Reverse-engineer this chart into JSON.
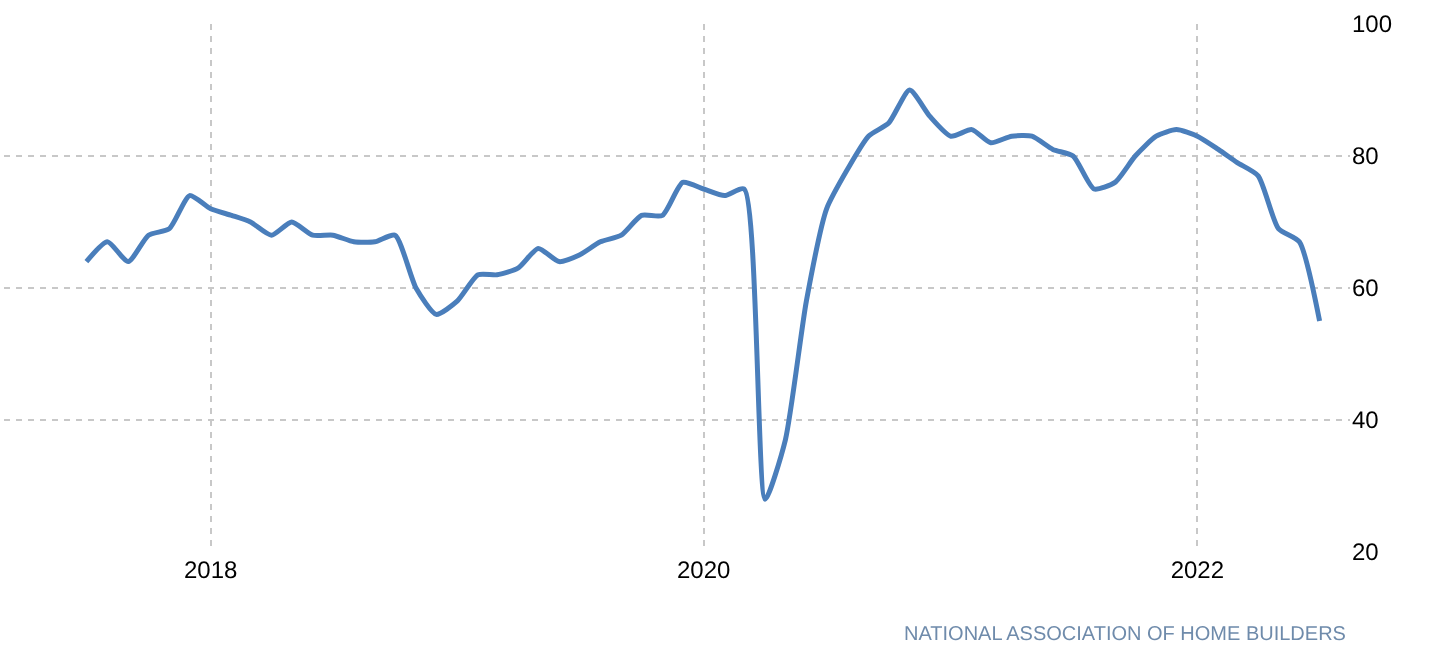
{
  "chart_data": {
    "type": "line",
    "x": [
      "2017-07",
      "2017-08",
      "2017-09",
      "2017-10",
      "2017-11",
      "2017-12",
      "2018-01",
      "2018-02",
      "2018-03",
      "2018-04",
      "2018-05",
      "2018-06",
      "2018-07",
      "2018-08",
      "2018-09",
      "2018-10",
      "2018-11",
      "2018-12",
      "2019-01",
      "2019-02",
      "2019-03",
      "2019-04",
      "2019-05",
      "2019-06",
      "2019-07",
      "2019-08",
      "2019-09",
      "2019-10",
      "2019-11",
      "2019-12",
      "2020-01",
      "2020-02",
      "2020-03",
      "2020-04",
      "2020-05",
      "2020-06",
      "2020-07",
      "2020-08",
      "2020-09",
      "2020-10",
      "2020-11",
      "2020-12",
      "2021-01",
      "2021-02",
      "2021-03",
      "2021-04",
      "2021-05",
      "2021-06",
      "2021-07",
      "2021-08",
      "2021-09",
      "2021-10",
      "2021-11",
      "2021-12",
      "2022-01",
      "2022-02",
      "2022-03",
      "2022-04",
      "2022-05",
      "2022-06",
      "2022-07"
    ],
    "series": [
      {
        "color": "#4a7ebb",
        "values": [
          64,
          67,
          64,
          68,
          69,
          74,
          72,
          71,
          70,
          68,
          70,
          68,
          68,
          67,
          67,
          68,
          60,
          56,
          58,
          62,
          62,
          63,
          66,
          64,
          65,
          67,
          68,
          71,
          71,
          76,
          75,
          74,
          75,
          28,
          37,
          58,
          72,
          78,
          83,
          85,
          90,
          86,
          83,
          84,
          82,
          83,
          83,
          81,
          80,
          75,
          76,
          80,
          83,
          84,
          83,
          81,
          79,
          77,
          69,
          67,
          55
        ]
      }
    ],
    "xlim": [
      "2017-03-01",
      "2022-08-15"
    ],
    "xticks": [
      {
        "value": "2018-01-01",
        "label": "2018"
      },
      {
        "value": "2020-01-01",
        "label": "2020"
      },
      {
        "value": "2022-01-01",
        "label": "2022"
      }
    ],
    "ylim": [
      20,
      100
    ],
    "yticks": [
      20,
      40,
      60,
      80,
      100
    ],
    "grid": true,
    "marker": "none",
    "line_style": "solid",
    "annotations": [
      "NATIONAL ASSOCIATION OF HOME BUILDERS"
    ]
  }
}
